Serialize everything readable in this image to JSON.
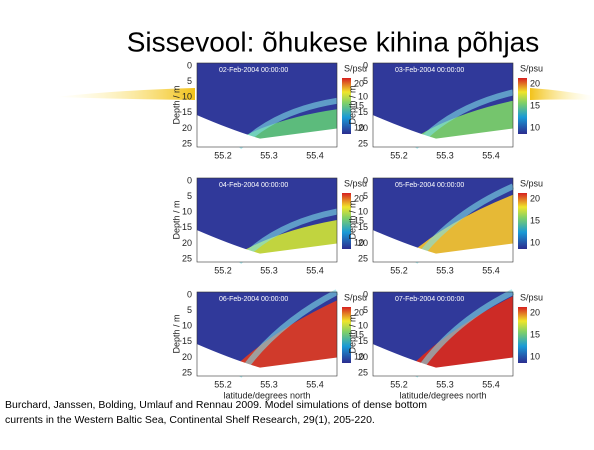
{
  "title": "Sissevool: õhukese kihina põhjas",
  "panels": [
    {
      "date": "02-Feb-2004 00:00:00",
      "y_label": "Depth / m",
      "y_ticks": [
        0,
        5,
        10,
        15,
        20,
        25
      ],
      "x_ticks": [
        "55.2",
        "55.3",
        "55.4"
      ],
      "colorbar_title": "S/psu",
      "colorbar_ticks": [
        20,
        15,
        10
      ]
    },
    {
      "date": "03-Feb-2004 00:00:00",
      "y_label": "Depth / m",
      "y_ticks": [
        0,
        5,
        10,
        15,
        20,
        25
      ],
      "x_ticks": [
        "55.2",
        "55.3",
        "55.4"
      ],
      "colorbar_title": "S/psu",
      "colorbar_ticks": [
        20,
        15,
        10
      ]
    },
    {
      "date": "04-Feb-2004 00:00:00",
      "y_label": "Depth / m",
      "y_ticks": [
        0,
        5,
        10,
        15,
        20,
        25
      ],
      "x_ticks": [
        "55.2",
        "55.3",
        "55.4"
      ],
      "colorbar_title": "S/psu",
      "colorbar_ticks": [
        20,
        15,
        10
      ]
    },
    {
      "date": "05-Feb-2004 00:00:00",
      "y_label": "Depth / m",
      "y_ticks": [
        0,
        5,
        10,
        15,
        20,
        25
      ],
      "x_ticks": [
        "55.2",
        "55.3",
        "55.4"
      ],
      "colorbar_title": "S/psu",
      "colorbar_ticks": [
        20,
        15,
        10
      ]
    },
    {
      "date": "06-Feb-2004 00:00:00",
      "y_label": "Depth / m",
      "y_ticks": [
        0,
        5,
        10,
        15,
        20,
        25
      ],
      "x_ticks": [
        "55.2",
        "55.3",
        "55.4"
      ],
      "colorbar_title": "S/psu",
      "colorbar_ticks": [
        20,
        15,
        10
      ],
      "x_label": "latitude/degrees north"
    },
    {
      "date": "07-Feb-2004 00:00:00",
      "y_label": "Depth / m",
      "y_ticks": [
        0,
        5,
        10,
        15,
        20,
        25
      ],
      "x_ticks": [
        "55.2",
        "55.3",
        "55.4"
      ],
      "colorbar_title": "S/psu",
      "colorbar_ticks": [
        20,
        15,
        10
      ],
      "x_label": "latitude/degrees north"
    }
  ],
  "caption": [
    "Burchard, Janssen, Bolding, Umlauf and Rennau 2009. Model simulations of dense bottom",
    "currents in the Western Baltic Sea, Continental Shelf Research, 29(1), 205-220."
  ]
}
